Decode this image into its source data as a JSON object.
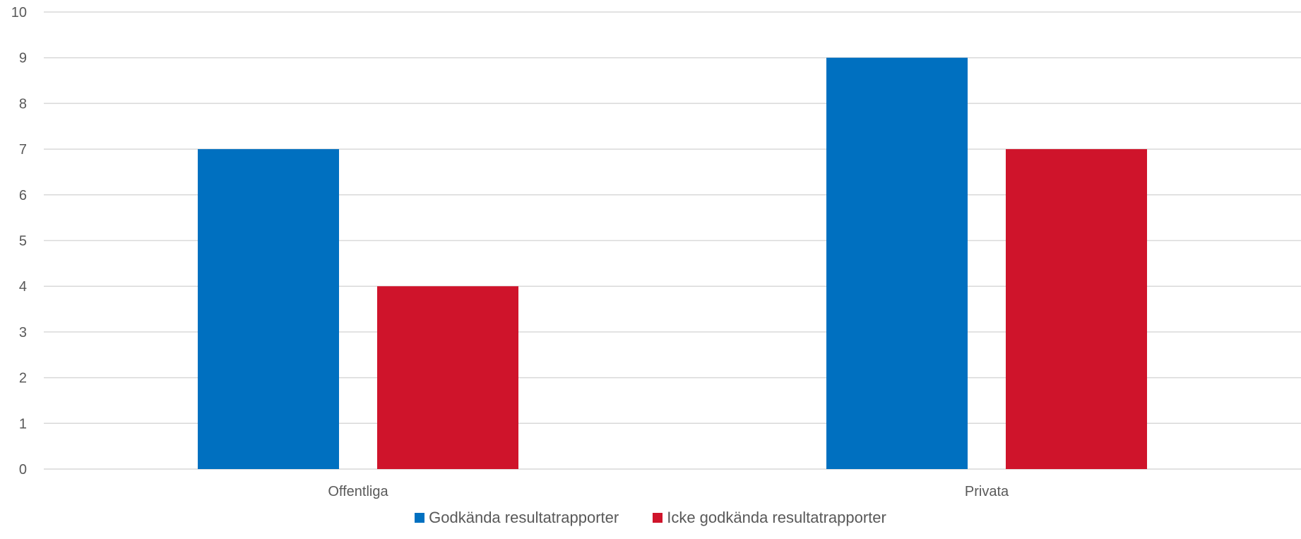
{
  "chart_data": {
    "type": "bar",
    "title": "",
    "xlabel": "",
    "ylabel": "",
    "categories": [
      "Offentliga",
      "Privata"
    ],
    "series": [
      {
        "name": "Godkända resultatrapporter",
        "values": [
          7,
          9
        ],
        "color": "#0070c0"
      },
      {
        "name": "Icke godkända resultatrapporter",
        "values": [
          4,
          7
        ],
        "color": "#cf142b"
      }
    ],
    "ylim": [
      0,
      10
    ],
    "yticks": [
      "0",
      "1",
      "2",
      "3",
      "4",
      "5",
      "6",
      "7",
      "8",
      "9",
      "10"
    ],
    "grid": true,
    "legend": "bottom"
  }
}
